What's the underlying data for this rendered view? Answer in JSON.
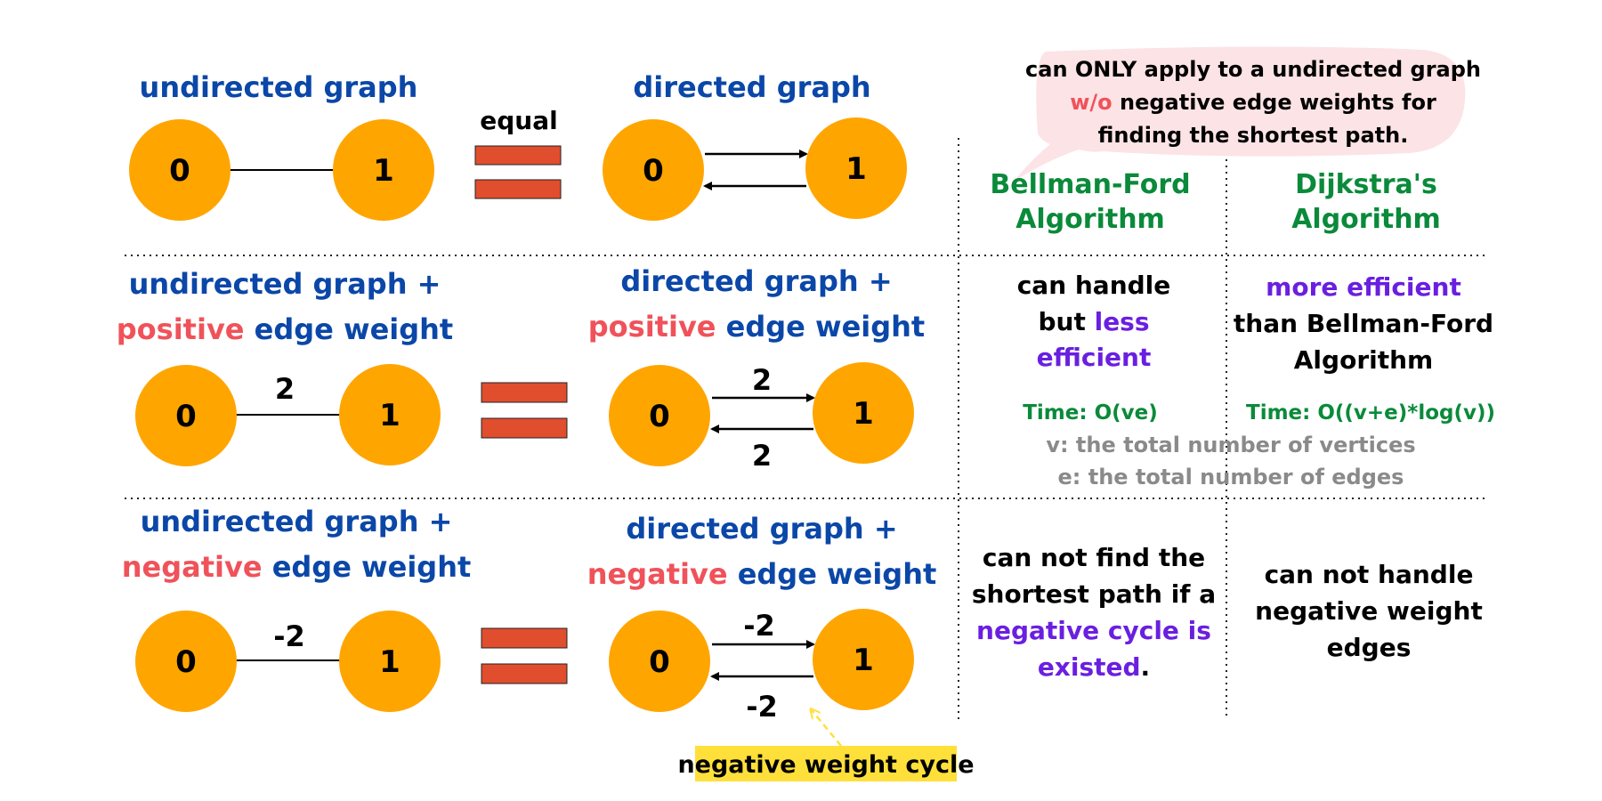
{
  "colors": {
    "node": "#FFA500",
    "equals": "#E04E2E",
    "blue": "#0B47A8",
    "red": "#F0525A",
    "green": "#0A8A3A",
    "purple": "#6A1FE0",
    "gray": "#8A8A8A",
    "bubble": "#FCE3E5",
    "highlight": "#FFE03A"
  },
  "equal_label": "equal",
  "row1": {
    "left_title": "undirected graph",
    "right_title": "directed graph",
    "left_nodes": [
      "0",
      "1"
    ],
    "right_nodes": [
      "0",
      "1"
    ]
  },
  "row2": {
    "left_title_line1": "undirected graph +",
    "left_title_word": "positive",
    "left_title_rest": " edge weight",
    "right_title_line1": "directed graph +",
    "right_title_word": "positive",
    "right_title_rest": " edge weight",
    "left_nodes": [
      "0",
      "1"
    ],
    "right_nodes": [
      "0",
      "1"
    ],
    "left_weight": "2",
    "right_weight_top": "2",
    "right_weight_bottom": "2"
  },
  "row3": {
    "left_title_line1": "undirected graph +",
    "left_title_word": "negative",
    "left_title_rest": " edge weight",
    "right_title_line1": "directed graph +",
    "right_title_word": "negative",
    "right_title_rest": " edge weight",
    "left_nodes": [
      "0",
      "1"
    ],
    "right_nodes": [
      "0",
      "1"
    ],
    "left_weight": "-2",
    "right_weight_top": "-2",
    "right_weight_bottom": "-2",
    "cycle_label": "negative weight cycle"
  },
  "bubble": {
    "line1": "can ONLY apply to a undirected graph",
    "line2_red": "w/o",
    "line2_rest": " negative edge weights for",
    "line3": "finding the shortest path."
  },
  "bellman": {
    "title_line1": "Bellman-Ford",
    "title_line2": "Algorithm",
    "positive_line1": "can handle",
    "positive_line2_a": "but ",
    "positive_line2_b": "less",
    "positive_line3": "efficient",
    "time": "Time: O(ve)",
    "negative_line1": "can not find the",
    "negative_line2": "shortest path if a",
    "negative_line3": "negative cycle is",
    "negative_line4_a": "existed",
    "negative_line4_b": "."
  },
  "dijkstra": {
    "title_line1": "Dijkstra's",
    "title_line2": "Algorithm",
    "positive_line1": "more efficient",
    "positive_line2": "than Bellman-Ford",
    "positive_line3": "Algorithm",
    "time": "Time: O((v+e)*log(v))",
    "negative_line1": "can not handle",
    "negative_line2": "negative weight",
    "negative_line3": "edges"
  },
  "notes": {
    "v": "v: the total number of vertices",
    "e": "e: the total number of edges"
  }
}
